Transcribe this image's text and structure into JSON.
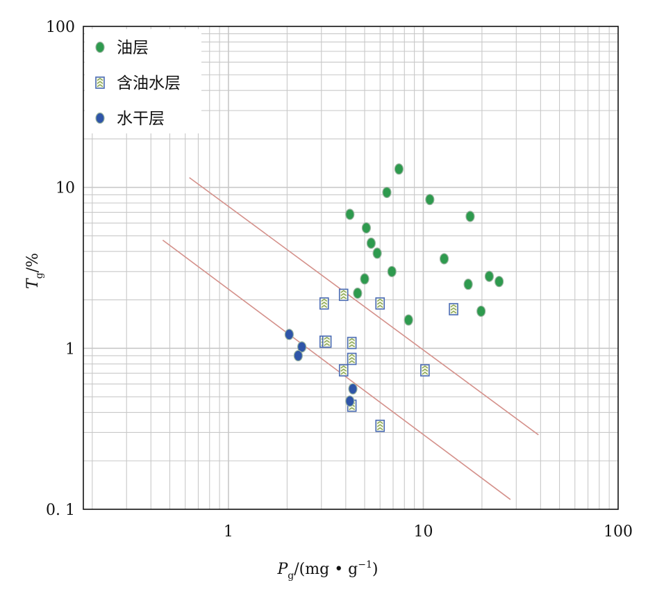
{
  "chart_data": {
    "type": "scatter",
    "title": "",
    "xlabel": {
      "main": "P",
      "sub": "g",
      "rest": "/(mg • g",
      "sup": "−1",
      "close": ")"
    },
    "ylabel": {
      "main": "T",
      "sub": "g",
      "rest": "/%"
    },
    "x_scale": "log",
    "y_scale": "log",
    "xlim": [
      0.18,
      100
    ],
    "ylim": [
      0.1,
      100
    ],
    "x_ticks": [
      {
        "value": 1,
        "label": "1"
      },
      {
        "value": 10,
        "label": "10"
      },
      {
        "value": 100,
        "label": "100"
      }
    ],
    "y_ticks": [
      {
        "value": 0.1,
        "label": "0. 1"
      },
      {
        "value": 1,
        "label": "1"
      },
      {
        "value": 10,
        "label": "10"
      },
      {
        "value": 100,
        "label": "100"
      }
    ],
    "grid": true,
    "legend_position": "top-left",
    "series": [
      {
        "name": "油层",
        "marker": "circle",
        "color": "#2e9a4e",
        "points": [
          [
            4.2,
            6.8
          ],
          [
            5.1,
            5.6
          ],
          [
            5.4,
            4.5
          ],
          [
            5.8,
            3.9
          ],
          [
            6.5,
            9.3
          ],
          [
            7.5,
            13.0
          ],
          [
            10.8,
            8.4
          ],
          [
            17.4,
            6.6
          ],
          [
            12.8,
            3.6
          ],
          [
            6.9,
            3.0
          ],
          [
            5.0,
            2.7
          ],
          [
            4.6,
            2.2
          ],
          [
            8.4,
            1.5
          ],
          [
            17.0,
            2.5
          ],
          [
            21.8,
            2.8
          ],
          [
            24.5,
            2.6
          ],
          [
            19.8,
            1.7
          ]
        ]
      },
      {
        "name": "含油水层",
        "marker": "square",
        "color": "#4a6bb5",
        "points": [
          [
            3.9,
            2.15
          ],
          [
            3.1,
            1.9
          ],
          [
            6.0,
            1.9
          ],
          [
            14.3,
            1.75
          ],
          [
            3.1,
            1.1
          ],
          [
            3.2,
            1.1
          ],
          [
            4.3,
            1.08
          ],
          [
            4.3,
            0.86
          ],
          [
            3.9,
            0.73
          ],
          [
            10.2,
            0.73
          ],
          [
            4.3,
            0.44
          ],
          [
            6.0,
            0.33
          ]
        ]
      },
      {
        "name": "水干层",
        "marker": "circle",
        "color": "#2f55a8",
        "points": [
          [
            2.05,
            1.22
          ],
          [
            2.38,
            1.02
          ],
          [
            2.28,
            0.9
          ],
          [
            4.35,
            0.56
          ],
          [
            4.2,
            0.47
          ]
        ]
      }
    ],
    "boundary_lines": [
      {
        "from": [
          0.63,
          11.5
        ],
        "to": [
          39.0,
          0.29
        ],
        "color": "#d4908a"
      },
      {
        "from": [
          0.46,
          4.7
        ],
        "to": [
          28.0,
          0.115
        ],
        "color": "#d4908a"
      }
    ]
  }
}
